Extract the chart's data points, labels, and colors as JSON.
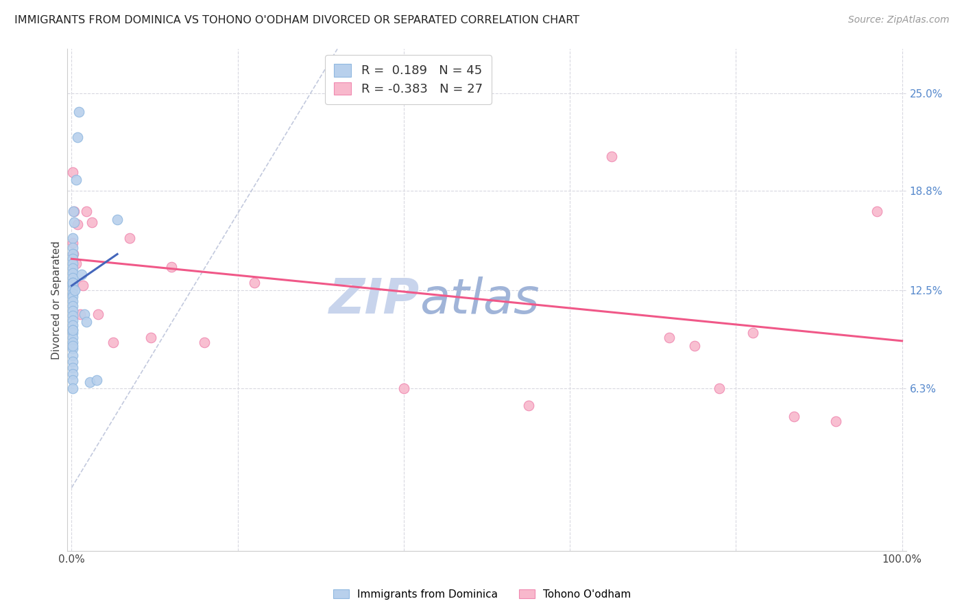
{
  "title": "IMMIGRANTS FROM DOMINICA VS TOHONO O'ODHAM DIVORCED OR SEPARATED CORRELATION CHART",
  "source_text": "Source: ZipAtlas.com",
  "ylabel": "Divorced or Separated",
  "xlim": [
    -0.005,
    1.005
  ],
  "ylim": [
    -0.04,
    0.278
  ],
  "x_ticks": [
    0.0,
    0.2,
    0.4,
    0.6,
    0.8,
    1.0
  ],
  "x_tick_labels": [
    "0.0%",
    "",
    "",
    "",
    "",
    "100.0%"
  ],
  "y_tick_labels_right": [
    "6.3%",
    "12.5%",
    "18.8%",
    "25.0%"
  ],
  "y_tick_values_right": [
    0.063,
    0.125,
    0.188,
    0.25
  ],
  "grid_color": "#d8d8e0",
  "background_color": "#ffffff",
  "blue_color": "#b8d0ec",
  "blue_edge_color": "#90b8e0",
  "blue_line_color": "#4466bb",
  "pink_color": "#f8b8cc",
  "pink_edge_color": "#f088b0",
  "pink_line_color": "#f05888",
  "ref_line_color": "#b8c0d8",
  "watermark_zip_color": "#c8d4e8",
  "watermark_atlas_color": "#a8b8d8",
  "scatter_size": 110,
  "blue_x": [
    0.001,
    0.001,
    0.001,
    0.001,
    0.001,
    0.001,
    0.001,
    0.001,
    0.001,
    0.001,
    0.001,
    0.001,
    0.001,
    0.001,
    0.001,
    0.001,
    0.001,
    0.001,
    0.001,
    0.001,
    0.001,
    0.001,
    0.001,
    0.001,
    0.001,
    0.001,
    0.001,
    0.001,
    0.001,
    0.001,
    0.001,
    0.001,
    0.001,
    0.002,
    0.003,
    0.004,
    0.005,
    0.007,
    0.009,
    0.012,
    0.015,
    0.018,
    0.022,
    0.03,
    0.055
  ],
  "blue_y": [
    0.158,
    0.152,
    0.148,
    0.145,
    0.142,
    0.139,
    0.136,
    0.133,
    0.13,
    0.128,
    0.126,
    0.123,
    0.121,
    0.118,
    0.115,
    0.112,
    0.109,
    0.106,
    0.103,
    0.1,
    0.098,
    0.095,
    0.092,
    0.088,
    0.084,
    0.08,
    0.076,
    0.072,
    0.068,
    0.063,
    0.13,
    0.1,
    0.09,
    0.175,
    0.168,
    0.125,
    0.195,
    0.222,
    0.238,
    0.135,
    0.11,
    0.105,
    0.067,
    0.068,
    0.17
  ],
  "pink_x": [
    0.001,
    0.001,
    0.002,
    0.003,
    0.005,
    0.007,
    0.01,
    0.014,
    0.018,
    0.024,
    0.032,
    0.05,
    0.07,
    0.095,
    0.12,
    0.16,
    0.22,
    0.4,
    0.55,
    0.65,
    0.72,
    0.75,
    0.78,
    0.82,
    0.87,
    0.92,
    0.97
  ],
  "pink_y": [
    0.2,
    0.155,
    0.148,
    0.175,
    0.142,
    0.167,
    0.11,
    0.128,
    0.175,
    0.168,
    0.11,
    0.092,
    0.158,
    0.095,
    0.14,
    0.092,
    0.13,
    0.063,
    0.052,
    0.21,
    0.095,
    0.09,
    0.063,
    0.098,
    0.045,
    0.042,
    0.175
  ],
  "blue_trend_x": [
    0.0,
    0.055
  ],
  "blue_trend_y": [
    0.128,
    0.148
  ],
  "pink_trend_x": [
    0.0,
    1.0
  ],
  "pink_trend_y": [
    0.145,
    0.093
  ],
  "ref_line_x": [
    0.0,
    0.32
  ],
  "ref_line_y": [
    0.0,
    0.278
  ]
}
